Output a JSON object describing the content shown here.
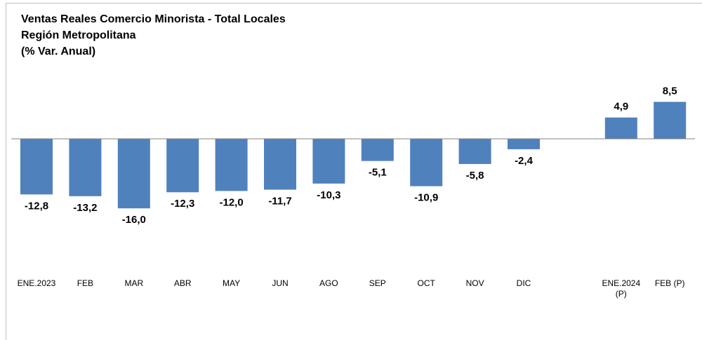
{
  "chart_data": {
    "type": "bar",
    "title": "Ventas Reales Comercio Minorista - Total Locales",
    "subtitle": "Región Metropolitana",
    "y_axis_label": "(% Var. Anual)",
    "categories": [
      "ENE.2023",
      "FEB",
      "MAR",
      "ABR",
      "MAY",
      "JUN",
      "AGO",
      "SEP",
      "OCT",
      "NOV",
      "DIC",
      null,
      "ENE.2024 (P)",
      "FEB  (P)"
    ],
    "values": [
      -12.8,
      -13.2,
      -16.0,
      -12.3,
      -12.0,
      -11.7,
      -10.3,
      -5.1,
      -10.9,
      -5.8,
      -2.4,
      null,
      4.9,
      8.5
    ],
    "value_labels": [
      "-12,8",
      "-13,2",
      "-16,0",
      "-12,3",
      "-12,0",
      "-11,7",
      "-10,3",
      "-5,1",
      "-10,9",
      "-5,8",
      "-2,4",
      null,
      "4,9",
      "8,5"
    ],
    "color": "#4f81bd"
  }
}
